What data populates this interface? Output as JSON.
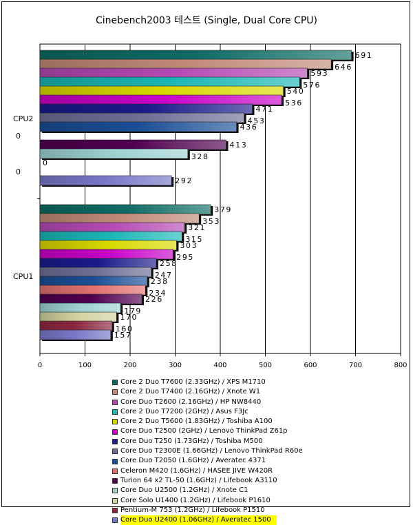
{
  "chart_data": {
    "type": "bar",
    "orientation": "horizontal",
    "title": "Cinebench2003 테스트 (Single, Dual Core CPU)",
    "xlim": [
      0,
      800
    ],
    "xticks": [
      "0",
      "100",
      "200",
      "300",
      "400",
      "500",
      "600",
      "700",
      "800"
    ],
    "grid": true,
    "legend_position": "bottom",
    "categories": [
      "CPU2",
      "CPU1"
    ],
    "series": [
      {
        "name": "Core 2 Duo T7600 (2.33GHz) / XPS M1710",
        "color": "#0e6b63",
        "values": [
          691,
          379
        ],
        "labels": [
          "691",
          "379"
        ]
      },
      {
        "name": "Core 2 Duo T7400 (2.16GHz) / Xnote W1",
        "color": "#c08978",
        "values": [
          646,
          353
        ],
        "labels": [
          "646",
          "353"
        ]
      },
      {
        "name": "Core Duo T2600 (2.16GHz) / HP NW8440",
        "color": "#b44ab4",
        "values": [
          593,
          321
        ],
        "labels": [
          "593",
          "321"
        ]
      },
      {
        "name": "Core 2 Duo T7200 (2GHz) / Asus F3Jc",
        "color": "#1ab6b6",
        "values": [
          576,
          315
        ],
        "labels": [
          "576",
          "315"
        ]
      },
      {
        "name": "Core 2 Duo T5600 (1.83GHz) / Toshiba A100",
        "color": "#d8d800",
        "values": [
          540,
          303
        ],
        "labels": [
          "540",
          "303"
        ]
      },
      {
        "name": "Core Duo T2500 (2GHz) / Lenovo ThinkPad Z61p",
        "color": "#c800c8",
        "values": [
          536,
          295
        ],
        "labels": [
          "536",
          "295"
        ]
      },
      {
        "name": "Core Duo T250 (1.73GHz) / Toshiba M500",
        "color": "#1a1a8c",
        "values": [
          471,
          258
        ],
        "labels": [
          "471",
          "258"
        ]
      },
      {
        "name": "Core Duo T2300E (1.66GHz) / Lenovo ThinkPad R60e",
        "color": "#6e6e96",
        "values": [
          453,
          247
        ],
        "labels": [
          "453",
          "247"
        ]
      },
      {
        "name": "Core Duo T2050 (1.6GHz) / Averatec 4371",
        "color": "#1a4e96",
        "values": [
          436,
          238
        ],
        "labels": [
          "436",
          "238"
        ]
      },
      {
        "name": "Celeron M420 (1.6GHz) / HASEE JIVE W420R",
        "color": "#e07070",
        "values": [
          null,
          234
        ],
        "labels": [
          "0",
          "234"
        ]
      },
      {
        "name": "Turion 64 x2 TL-50 (1.6GHz) / Lifebook A3110",
        "color": "#500050",
        "values": [
          413,
          226
        ],
        "labels": [
          "413",
          "226"
        ]
      },
      {
        "name": "Core Duo U2500 (1.2GHz) / Xnote C1",
        "color": "#9ed2d2",
        "values": [
          328,
          179
        ],
        "labels": [
          "328",
          "179"
        ]
      },
      {
        "name": "Core Solo U1400 (1.2GHz) / Lifebook P1610",
        "color": "#d2d2a0",
        "values": [
          null,
          170
        ],
        "labels": [
          "0",
          "170"
        ]
      },
      {
        "name": "Pentium-M 753 (1.2GHz) / Lifebook P1510",
        "color": "#8c2840",
        "values": [
          null,
          160
        ],
        "labels": [
          "0",
          "160"
        ]
      },
      {
        "name": "Core Duo U2400 (1.06GHz) / Averatec 1500",
        "color": "#7878c8",
        "values": [
          292,
          157
        ],
        "labels": [
          "292",
          "157"
        ],
        "highlighted": true
      }
    ]
  }
}
